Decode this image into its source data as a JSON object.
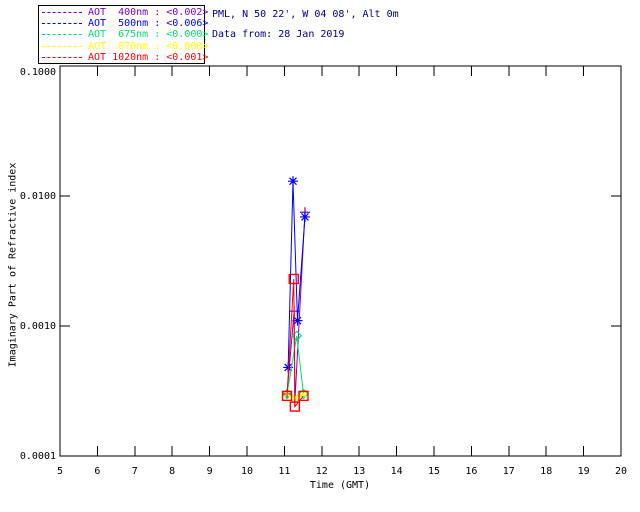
{
  "header": {
    "site_line": "PML, N 50 22', W 04 08', Alt 0m",
    "date_line": "Data from: 28 Jan 2019",
    "color": "#000080"
  },
  "legend": {
    "position": "top-left",
    "items": [
      {
        "label": "AOT  400nm : <0.002>",
        "wavelength": "400nm",
        "average": "<0.002>",
        "color": "#7A00CC"
      },
      {
        "label": "AOT  500nm : <0.006>",
        "wavelength": "500nm",
        "average": "<0.006>",
        "color": "#0000FF"
      },
      {
        "label": "AOT  675nm : <0.000>",
        "wavelength": "675nm",
        "average": "<0.000>",
        "color": "#00E070"
      },
      {
        "label": "AOT  870nm : <0.000>",
        "wavelength": "870nm",
        "average": "<0.000>",
        "color": "#FFFF00"
      },
      {
        "label": "AOT 1020nm : <0.001>",
        "wavelength": "1020nm",
        "average": "<0.001>",
        "color": "#FF0000"
      }
    ]
  },
  "chart_data": {
    "type": "line",
    "title": "",
    "xlabel": "Time (GMT)",
    "ylabel": "Imaginary Part of Refractive index",
    "xlim": [
      5,
      20
    ],
    "ylim": [
      0.0001,
      0.1
    ],
    "yscale": "log",
    "grid": false,
    "x_ticks": [
      5,
      6,
      7,
      8,
      9,
      10,
      11,
      12,
      13,
      14,
      15,
      16,
      17,
      18,
      19,
      20
    ],
    "y_ticks": [
      {
        "value": 0.1,
        "label": "0.1000"
      },
      {
        "value": 0.01,
        "label": "0.0100"
      },
      {
        "value": 0.001,
        "label": "0.0010"
      },
      {
        "value": 0.0001,
        "label": "0.0001"
      }
    ],
    "series": [
      {
        "name": "AOT 400nm",
        "wavelength": "400nm",
        "color": "#7A00CC",
        "marker": "plus",
        "points": [
          [
            11.07,
            0.0003
          ],
          [
            11.26,
            0.0013
          ],
          [
            11.28,
            0.00026
          ],
          [
            11.55,
            0.0075
          ]
        ]
      },
      {
        "name": "AOT 500nm",
        "wavelength": "500nm",
        "color": "#0000FF",
        "marker": "asterisk",
        "points": [
          [
            11.1,
            0.00048
          ],
          [
            11.23,
            0.013
          ],
          [
            11.35,
            0.0011
          ],
          [
            11.55,
            0.0069
          ]
        ]
      },
      {
        "name": "AOT 675nm",
        "wavelength": "675nm",
        "color": "#00E070",
        "marker": "diamond",
        "points": [
          [
            11.07,
            0.0003
          ],
          [
            11.33,
            0.00084
          ],
          [
            11.51,
            0.0003
          ]
        ]
      },
      {
        "name": "AOT 870nm",
        "wavelength": "870nm",
        "color": "#FFFF00",
        "marker": "x",
        "points": [
          [
            11.07,
            0.0003
          ],
          [
            11.28,
            0.00028
          ],
          [
            11.51,
            0.0003
          ]
        ]
      },
      {
        "name": "AOT 1020nm",
        "wavelength": "1020nm",
        "color": "#FF0000",
        "marker": "square",
        "points": [
          [
            11.07,
            0.00029
          ],
          [
            11.25,
            0.0023
          ],
          [
            11.28,
            0.00024
          ],
          [
            11.51,
            0.00029
          ]
        ]
      }
    ]
  }
}
